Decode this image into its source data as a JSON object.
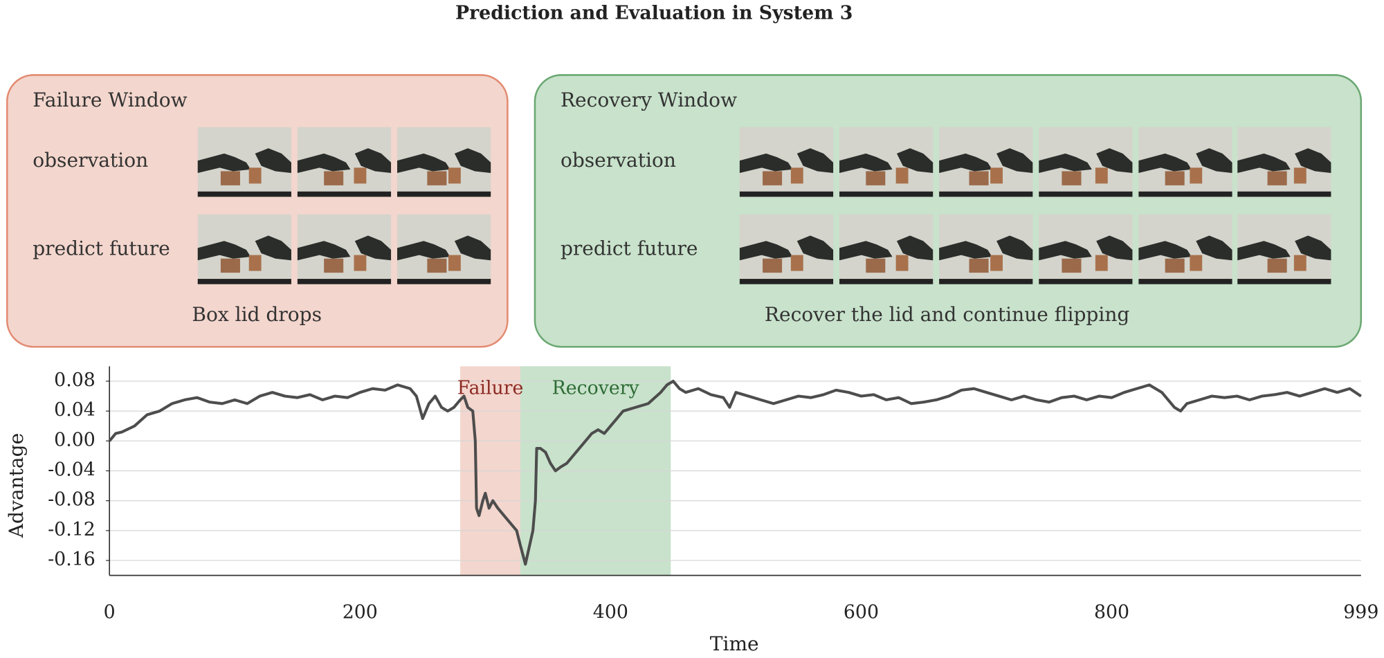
{
  "chart_data": {
    "type": "line",
    "title": "Prediction and Evaluation in System 3",
    "xlabel": "Time",
    "ylabel": "Advantage",
    "color": "#4d4d4d",
    "xlim": [
      0,
      999
    ],
    "xticks": [
      0,
      200,
      400,
      600,
      800,
      999
    ],
    "ylim": [
      -0.18,
      0.1
    ],
    "yticks": [
      0.08,
      0.04,
      {
        "value": 0,
        "label": "0.00"
      },
      -0.04,
      -0.08,
      -0.12,
      -0.16
    ],
    "grid": true,
    "regions": [
      {
        "label": "Failure",
        "start": 280,
        "end": 328,
        "color": "#f3d6cd",
        "label_color": "#8b2a22"
      },
      {
        "label": "Recovery",
        "start": 328,
        "end": 448,
        "color": "#c8e2cb",
        "label_color": "#2e6b35"
      }
    ],
    "x": [
      0,
      5,
      10,
      20,
      30,
      40,
      50,
      60,
      70,
      80,
      90,
      100,
      110,
      120,
      130,
      140,
      150,
      160,
      170,
      180,
      190,
      200,
      210,
      220,
      230,
      240,
      245,
      250,
      255,
      260,
      265,
      270,
      275,
      280,
      283,
      286,
      290,
      292,
      293,
      295,
      298,
      300,
      303,
      306,
      310,
      315,
      320,
      325,
      328,
      332,
      334,
      336,
      338,
      340,
      341,
      344,
      348,
      352,
      356,
      360,
      365,
      370,
      375,
      380,
      385,
      390,
      395,
      400,
      405,
      410,
      420,
      430,
      440,
      445,
      450,
      455,
      460,
      470,
      480,
      490,
      495,
      500,
      510,
      520,
      530,
      540,
      550,
      560,
      570,
      580,
      590,
      600,
      610,
      620,
      630,
      640,
      650,
      660,
      670,
      680,
      690,
      700,
      710,
      720,
      730,
      740,
      750,
      760,
      770,
      780,
      790,
      800,
      810,
      820,
      830,
      840,
      850,
      855,
      860,
      870,
      880,
      890,
      900,
      910,
      920,
      930,
      940,
      950,
      960,
      970,
      980,
      990,
      999
    ],
    "values": [
      0.0,
      0.01,
      0.012,
      0.02,
      0.035,
      0.04,
      0.05,
      0.055,
      0.058,
      0.052,
      0.05,
      0.055,
      0.05,
      0.06,
      0.065,
      0.06,
      0.058,
      0.062,
      0.055,
      0.06,
      0.058,
      0.065,
      0.07,
      0.068,
      0.075,
      0.07,
      0.06,
      0.03,
      0.05,
      0.06,
      0.045,
      0.04,
      0.045,
      0.055,
      0.06,
      0.045,
      0.04,
      0.0,
      -0.09,
      -0.1,
      -0.08,
      -0.07,
      -0.09,
      -0.08,
      -0.09,
      -0.1,
      -0.11,
      -0.12,
      -0.14,
      -0.165,
      -0.15,
      -0.135,
      -0.12,
      -0.08,
      -0.01,
      -0.01,
      -0.015,
      -0.03,
      -0.04,
      -0.035,
      -0.03,
      -0.02,
      -0.01,
      0.0,
      0.01,
      0.015,
      0.01,
      0.02,
      0.03,
      0.04,
      0.045,
      0.05,
      0.065,
      0.075,
      0.08,
      0.07,
      0.065,
      0.07,
      0.062,
      0.058,
      0.045,
      0.065,
      0.06,
      0.055,
      0.05,
      0.055,
      0.06,
      0.058,
      0.062,
      0.068,
      0.065,
      0.06,
      0.062,
      0.055,
      0.058,
      0.05,
      0.052,
      0.055,
      0.06,
      0.068,
      0.07,
      0.065,
      0.06,
      0.055,
      0.06,
      0.055,
      0.052,
      0.058,
      0.06,
      0.055,
      0.06,
      0.058,
      0.065,
      0.07,
      0.075,
      0.065,
      0.045,
      0.04,
      0.05,
      0.055,
      0.06,
      0.058,
      0.06,
      0.055,
      0.06,
      0.062,
      0.065,
      0.06,
      0.065,
      0.07,
      0.065,
      0.07,
      0.06
    ]
  },
  "panels": [
    {
      "title": "Failure Window",
      "rows": [
        "observation",
        "predict future"
      ],
      "caption": "Box lid drops",
      "fill": "#f3d6cd",
      "stroke": "#e38b72"
    },
    {
      "title": "Recovery Window",
      "rows": [
        "observation",
        "predict future"
      ],
      "caption": "Recover the lid and continue flipping",
      "fill": "#c8e2cb",
      "stroke": "#6aa872"
    }
  ]
}
